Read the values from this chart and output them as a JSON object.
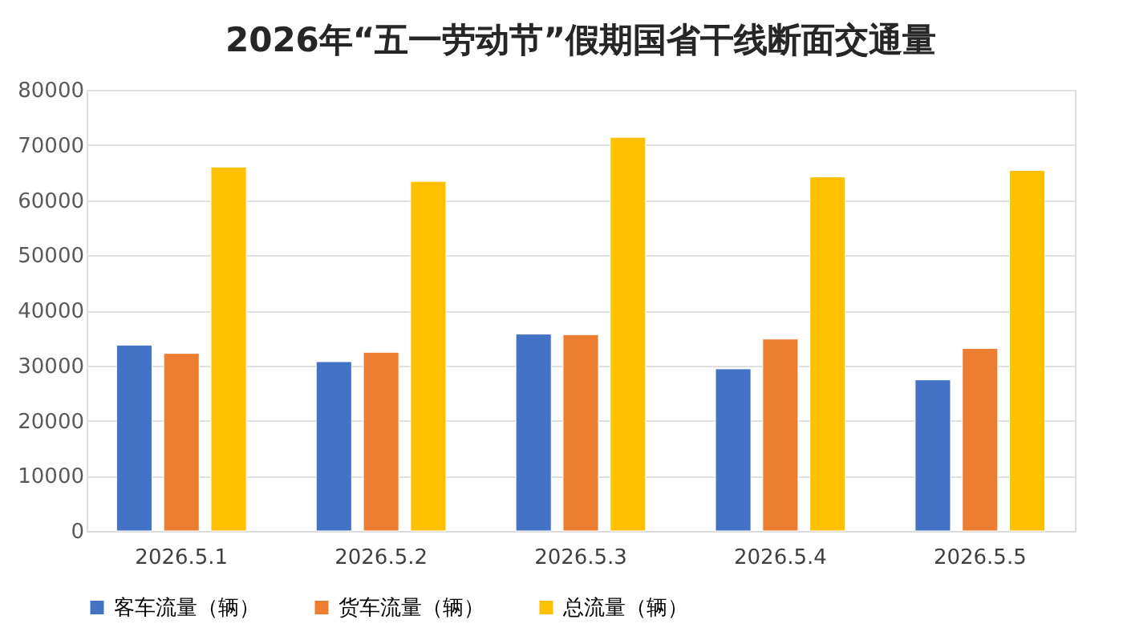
{
  "chart_data": {
    "type": "bar",
    "title": "2026年“五一劳动节”假期国省干线断面交通量",
    "categories": [
      "2026.5.1",
      "2026.5.2",
      "2026.5.3",
      "2026.5.4",
      "2026.5.5"
    ],
    "series": [
      {
        "name": "客车流量（辆）",
        "color": "#4472c4",
        "values": [
          33700,
          30700,
          35700,
          29400,
          27400
        ]
      },
      {
        "name": "货车流量（辆）",
        "color": "#ed7d31",
        "values": [
          32200,
          32400,
          35600,
          34800,
          33100
        ]
      },
      {
        "name": "总流量（辆）",
        "color": "#ffc000",
        "values": [
          66000,
          63400,
          71400,
          64200,
          65400
        ]
      }
    ],
    "ylim": [
      0,
      80000
    ],
    "yticks": [
      0,
      10000,
      20000,
      30000,
      40000,
      50000,
      60000,
      70000,
      80000
    ],
    "grid": "y",
    "legend": "bottom"
  }
}
